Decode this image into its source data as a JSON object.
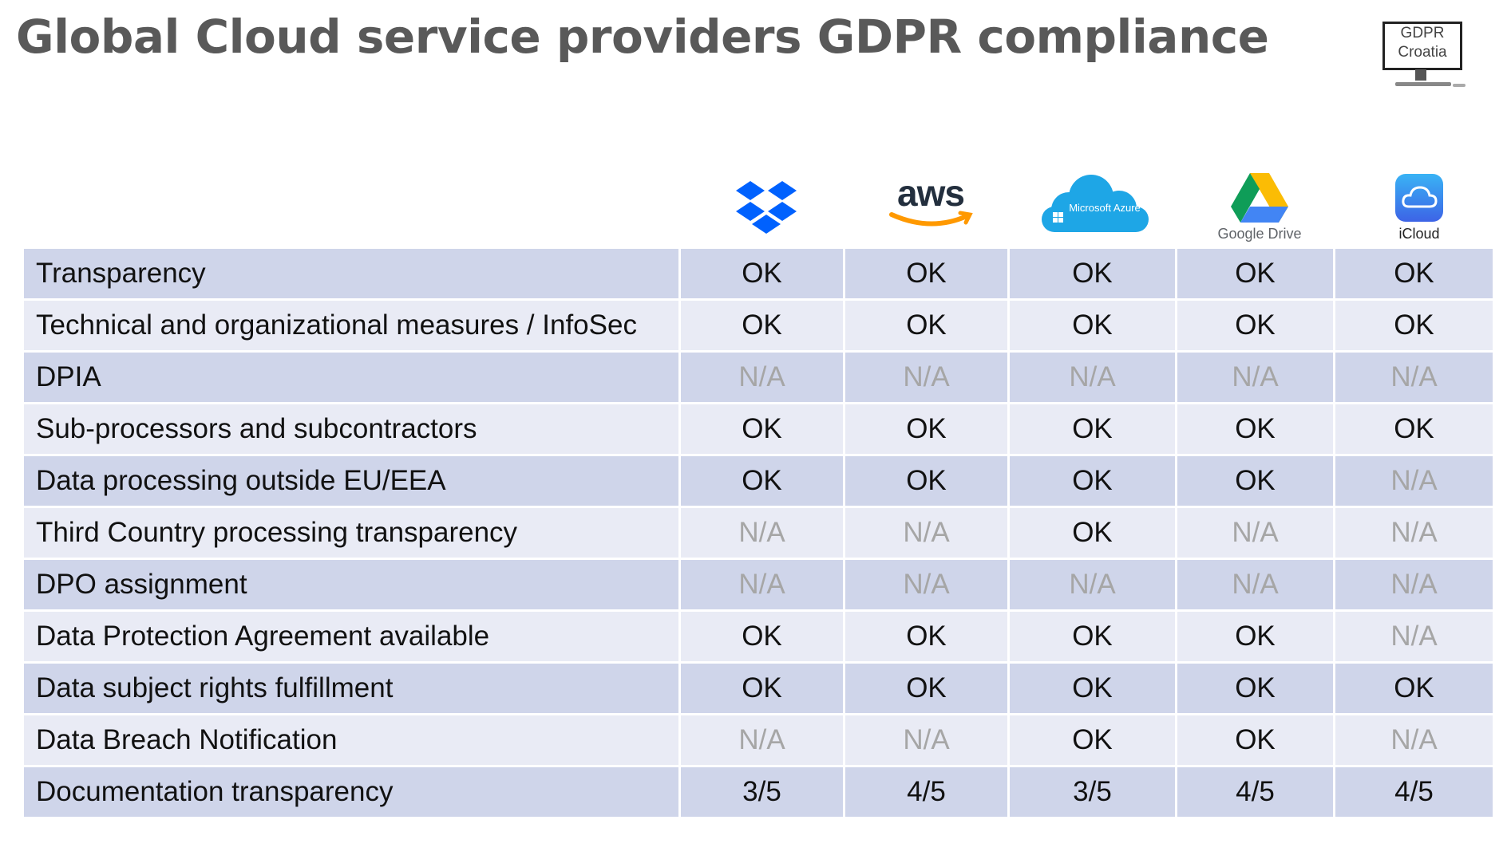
{
  "title": "Global Cloud service providers GDPR compliance",
  "corner_logo": {
    "line1": "GDPR",
    "line2": "Croatia"
  },
  "providers": [
    {
      "icon": "dropbox-icon",
      "caption": ""
    },
    {
      "icon": "aws-icon",
      "caption": "aws"
    },
    {
      "icon": "microsoft-azure-icon",
      "caption": "Microsoft Azure"
    },
    {
      "icon": "google-drive-icon",
      "caption": "Google Drive"
    },
    {
      "icon": "icloud-icon",
      "caption": "iCloud"
    }
  ],
  "colors": {
    "row_dark": "#cfd5ea",
    "row_light": "#e9ebf5",
    "na_text": "#a6a6a6",
    "title": "#595959"
  },
  "rows": [
    {
      "criterion": "Transparency",
      "values": [
        "OK",
        "OK",
        "OK",
        "OK",
        "OK"
      ]
    },
    {
      "criterion": "Technical and organizational measures / InfoSec",
      "values": [
        "OK",
        "OK",
        "OK",
        "OK",
        "OK"
      ]
    },
    {
      "criterion": "DPIA",
      "values": [
        "N/A",
        "N/A",
        "N/A",
        "N/A",
        "N/A"
      ]
    },
    {
      "criterion": "Sub-processors and subcontractors",
      "values": [
        "OK",
        "OK",
        "OK",
        "OK",
        "OK"
      ]
    },
    {
      "criterion": "Data processing outside EU/EEA",
      "values": [
        "OK",
        "OK",
        "OK",
        "OK",
        "N/A"
      ]
    },
    {
      "criterion": "Third Country processing transparency",
      "values": [
        "N/A",
        "N/A",
        "OK",
        "N/A",
        "N/A"
      ]
    },
    {
      "criterion": "DPO assignment",
      "values": [
        "N/A",
        "N/A",
        "N/A",
        "N/A",
        "N/A"
      ]
    },
    {
      "criterion": "Data Protection Agreement available",
      "values": [
        "OK",
        "OK",
        "OK",
        "OK",
        "N/A"
      ]
    },
    {
      "criterion": "Data subject rights fulfillment",
      "values": [
        "OK",
        "OK",
        "OK",
        "OK",
        "OK"
      ]
    },
    {
      "criterion": "Data Breach Notification",
      "values": [
        "N/A",
        "N/A",
        "OK",
        "OK",
        "N/A"
      ]
    },
    {
      "criterion": "Documentation transparency",
      "values": [
        "3/5",
        "4/5",
        "3/5",
        "4/5",
        "4/5"
      ]
    }
  ]
}
